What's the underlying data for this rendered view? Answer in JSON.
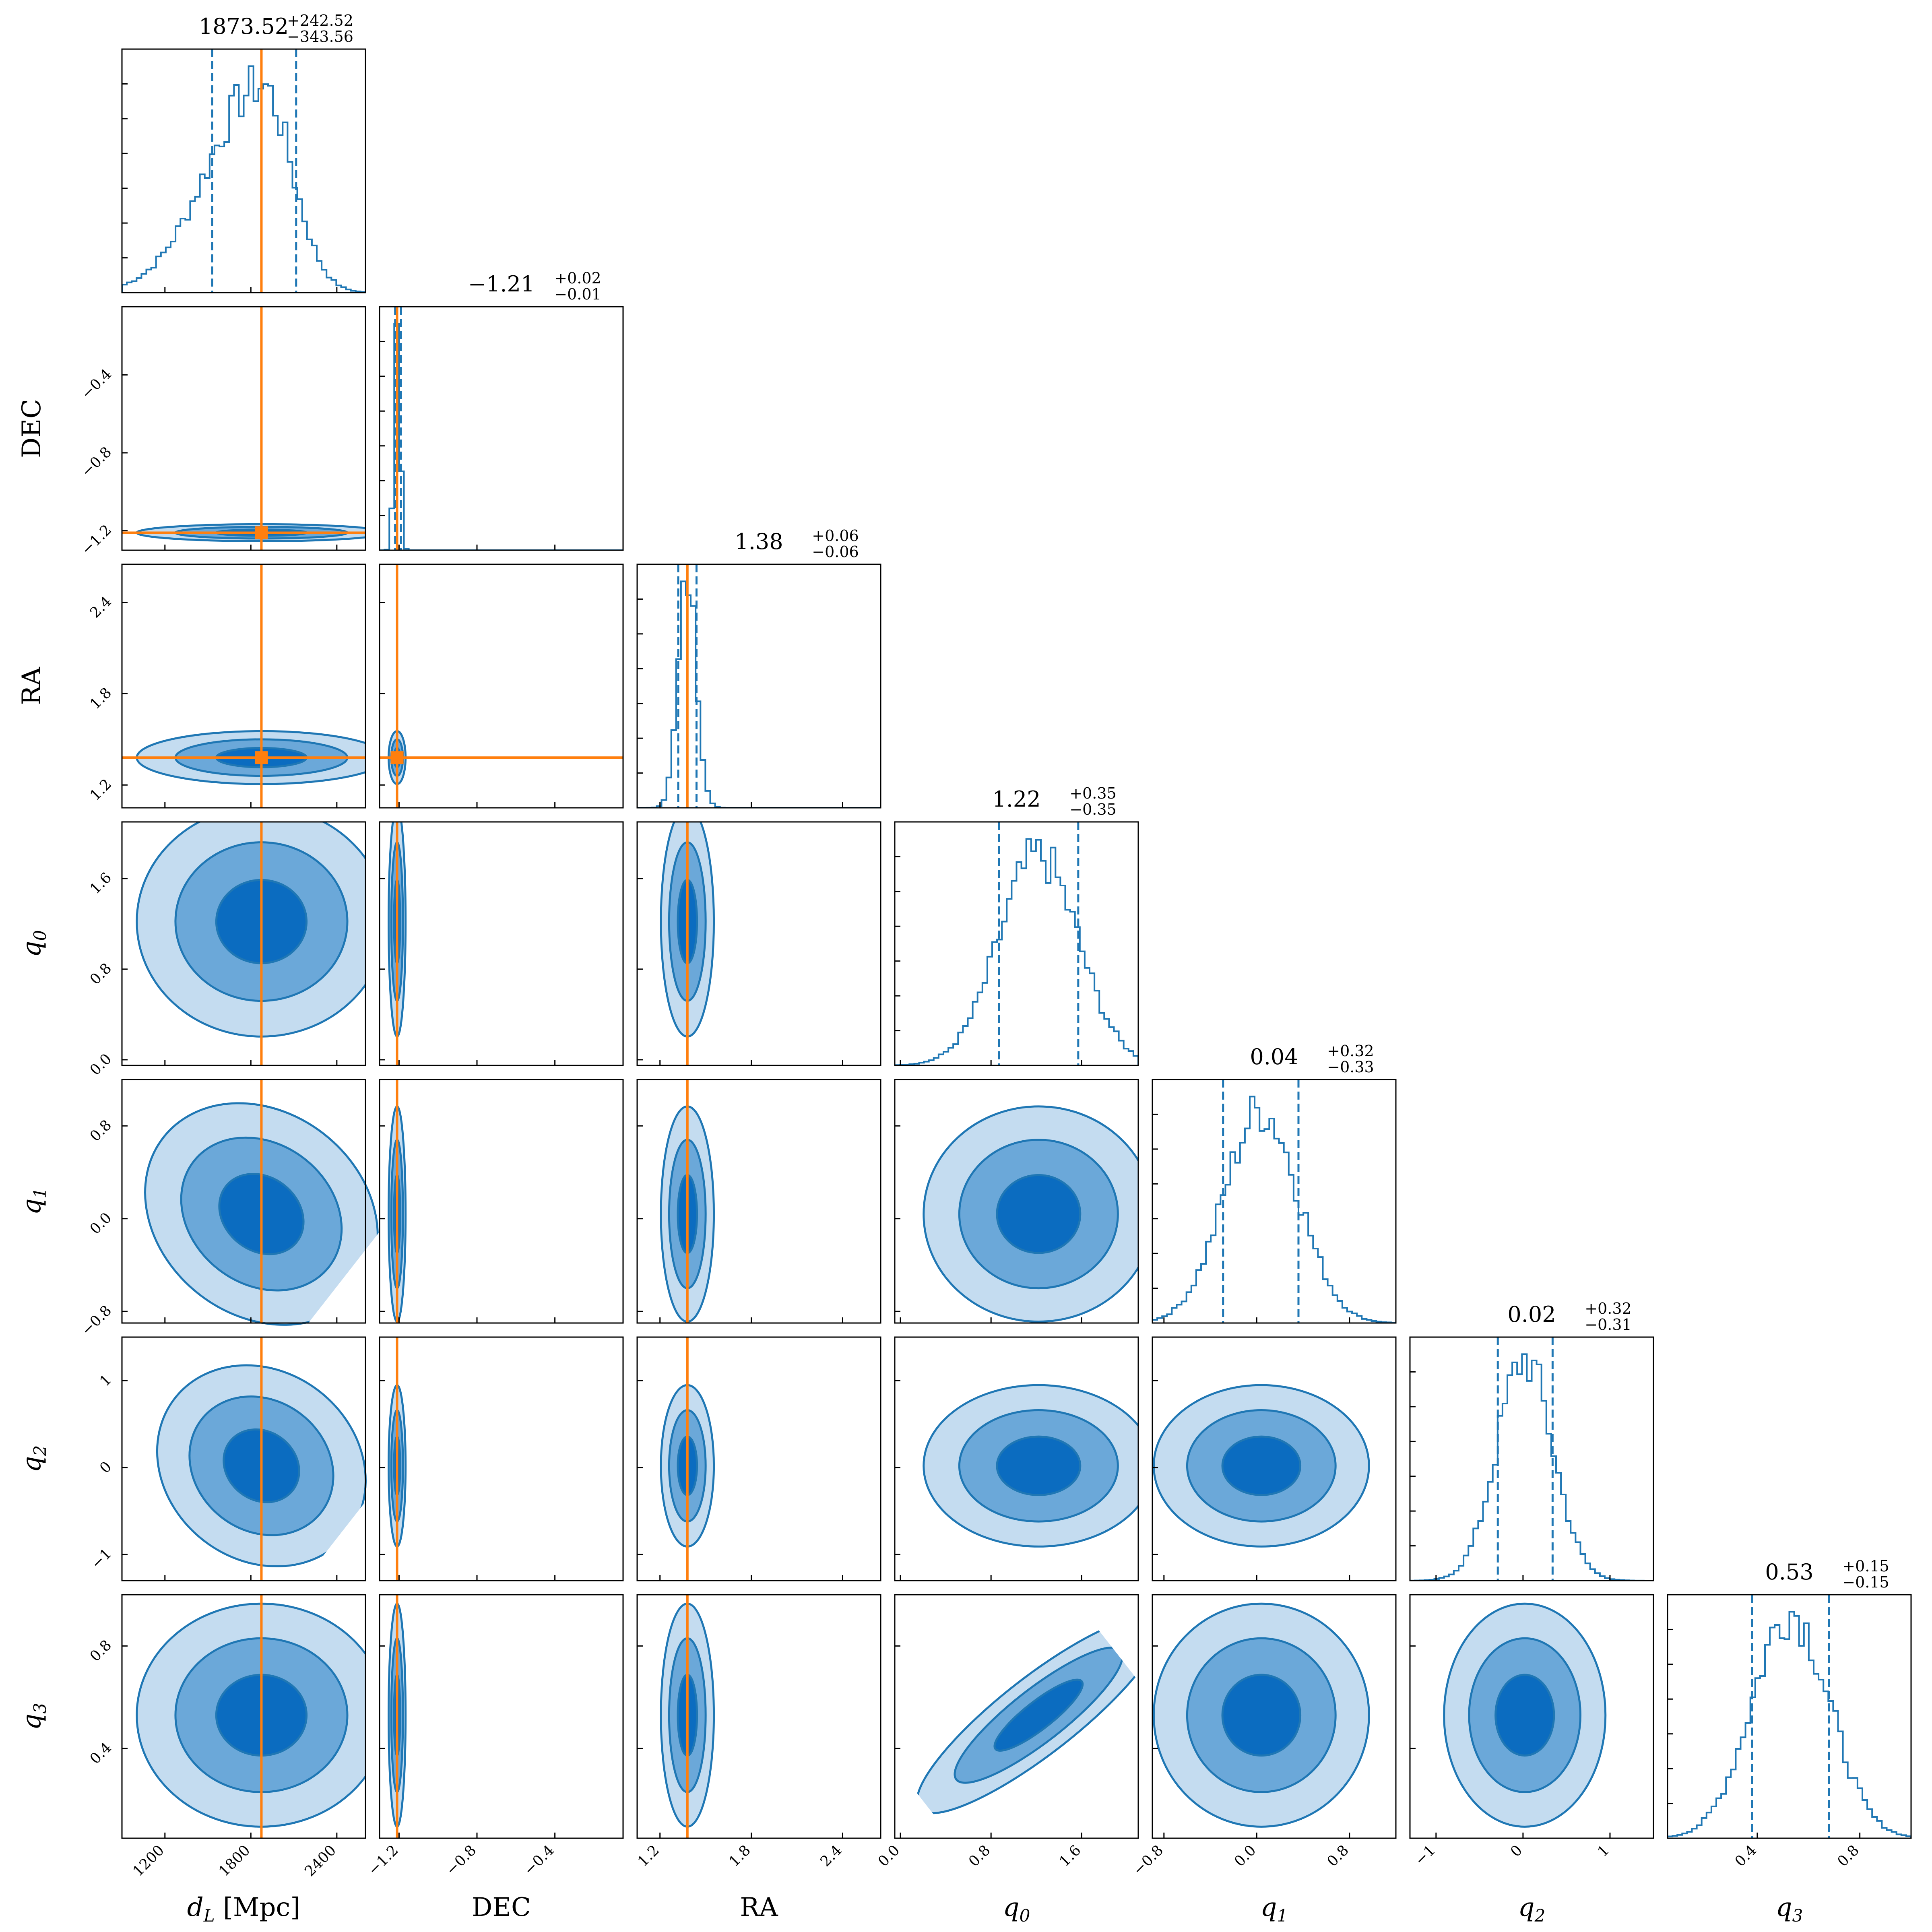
{
  "chart_data": {
    "type": "corner",
    "parameters": [
      {
        "key": "dL",
        "label_main": "d",
        "label_sub": "L",
        "label_suffix": " [Mpc]",
        "range": [
          900,
          2600
        ],
        "ticks": [
          1200,
          1800,
          2400
        ],
        "tick_labels": [
          "1200",
          "1800",
          "2400"
        ],
        "median": 1873.52,
        "err_plus": "+242.52",
        "err_minus": "−343.56",
        "title_value": "1873.52",
        "q16": 1529.96,
        "q84": 2116.04,
        "true_value": 1873.52,
        "dist": "skew",
        "sd": 300
      },
      {
        "key": "DEC",
        "label_main": "DEC",
        "label_sub": "",
        "label_suffix": "",
        "range": [
          -1.3,
          -0.05
        ],
        "ticks": [
          -1.2,
          -0.8,
          -0.4
        ],
        "tick_labels": [
          "−1.2",
          "−0.8",
          "−0.4"
        ],
        "median": -1.21,
        "err_plus": "+0.02",
        "err_minus": "−0.01",
        "title_value": "−1.21",
        "q16": -1.22,
        "q84": -1.19,
        "true_value": -1.21,
        "dist": "normal",
        "sd": 0.015
      },
      {
        "key": "RA",
        "label_main": "RA",
        "label_sub": "",
        "label_suffix": "",
        "range": [
          1.05,
          2.65
        ],
        "ticks": [
          1.2,
          1.8,
          2.4
        ],
        "tick_labels": [
          "1.2",
          "1.8",
          "2.4"
        ],
        "median": 1.38,
        "err_plus": "+0.06",
        "err_minus": "−0.06",
        "title_value": "1.38",
        "q16": 1.32,
        "q84": 1.44,
        "true_value": 1.38,
        "dist": "normal",
        "sd": 0.06
      },
      {
        "key": "q0",
        "label_main": "q",
        "label_sub": "0",
        "label_suffix": "",
        "range": [
          -0.05,
          2.1
        ],
        "ticks": [
          0.0,
          0.8,
          1.6
        ],
        "tick_labels": [
          "0.0",
          "0.8",
          "1.6"
        ],
        "median": 1.22,
        "err_plus": "+0.35",
        "err_minus": "−0.35",
        "title_value": "1.22",
        "q16": 0.87,
        "q84": 1.57,
        "true_value": null,
        "dist": "normal",
        "sd": 0.35
      },
      {
        "key": "q1",
        "label_main": "q",
        "label_sub": "1",
        "label_suffix": "",
        "range": [
          -0.9,
          1.2
        ],
        "ticks": [
          -0.8,
          0.0,
          0.8
        ],
        "tick_labels": [
          "−0.8",
          "0.0",
          "0.8"
        ],
        "median": 0.04,
        "err_plus": "+0.32",
        "err_minus": "−0.33",
        "title_value": "0.04",
        "q16": -0.29,
        "q84": 0.36,
        "true_value": null,
        "dist": "normal",
        "sd": 0.32
      },
      {
        "key": "q2",
        "label_main": "q",
        "label_sub": "2",
        "label_suffix": "",
        "range": [
          -1.3,
          1.5
        ],
        "ticks": [
          -1,
          0,
          1
        ],
        "tick_labels": [
          "−1",
          "0",
          "1"
        ],
        "median": 0.02,
        "err_plus": "+0.32",
        "err_minus": "−0.31",
        "title_value": "0.02",
        "q16": -0.29,
        "q84": 0.34,
        "true_value": null,
        "dist": "normal",
        "sd": 0.32
      },
      {
        "key": "q3",
        "label_main": "q",
        "label_sub": "3",
        "label_suffix": "",
        "range": [
          0.05,
          1.0
        ],
        "ticks": [
          0.4,
          0.8
        ],
        "tick_labels": [
          "0.4",
          "0.8"
        ],
        "median": 0.53,
        "err_plus": "+0.15",
        "err_minus": "−0.15",
        "title_value": "0.53",
        "q16": 0.38,
        "q84": 0.68,
        "true_value": null,
        "dist": "normal",
        "sd": 0.15
      }
    ],
    "correlations": [
      {
        "i": 3,
        "j": 6,
        "rho": 0.88
      },
      {
        "i": 0,
        "j": 4,
        "rho": -0.2
      },
      {
        "i": 0,
        "j": 5,
        "rho": -0.15
      }
    ],
    "contour_levels": [
      "1σ",
      "2σ",
      "3σ"
    ],
    "colors": {
      "posterior": "#1f77b4",
      "fill_dark": "#0b6cc0",
      "fill_mid": "#6ba8d9",
      "fill_light": "#c4dcf0",
      "truth": "#ff7f0e"
    }
  }
}
